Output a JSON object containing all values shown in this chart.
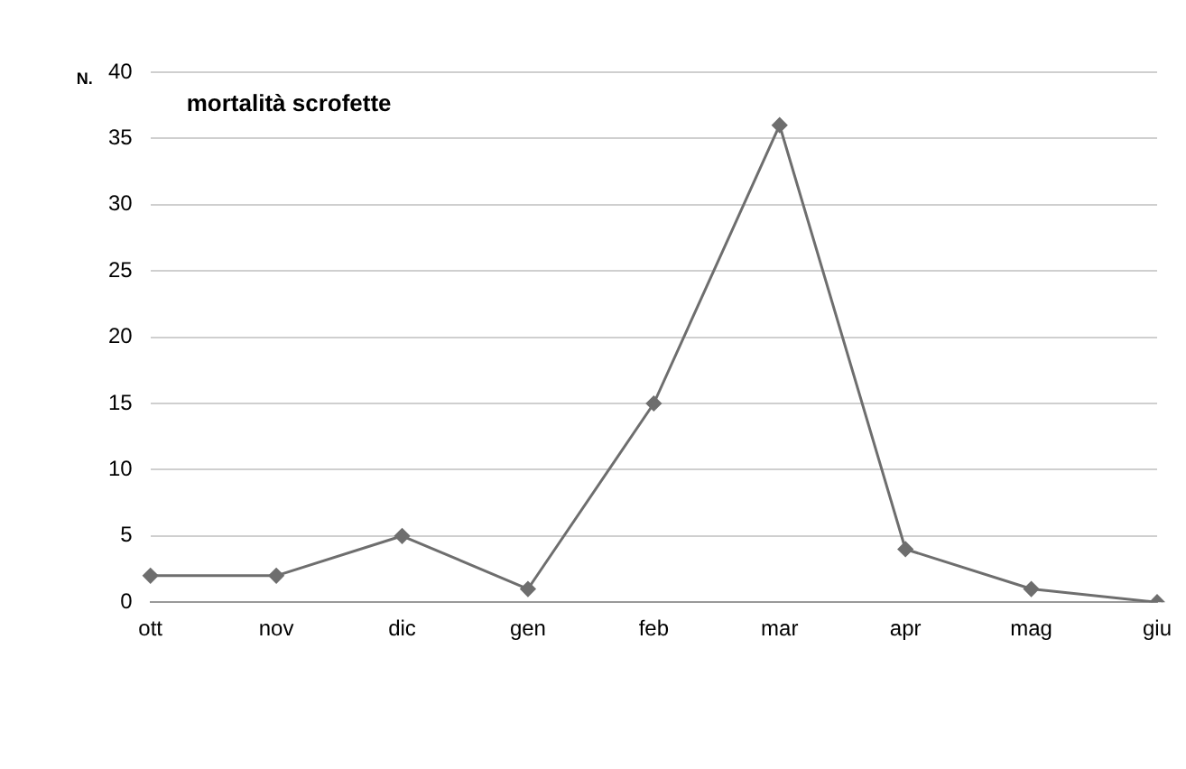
{
  "chart_data": {
    "type": "line",
    "title": "mortalità scrofette",
    "ylabel": "N.",
    "categories": [
      "ott",
      "nov",
      "dic",
      "gen",
      "feb",
      "mar",
      "apr",
      "mag",
      "giu"
    ],
    "series": [
      {
        "color": "#6e6e6e",
        "values": [
          2,
          2,
          5,
          1,
          15,
          36,
          4,
          1,
          0
        ]
      }
    ],
    "ylim": [
      0,
      40
    ],
    "yticks": [
      0,
      5,
      10,
      15,
      20,
      25,
      30,
      35,
      40
    ],
    "grid": "y",
    "legend": false,
    "marker": "diamond",
    "line_style": "solid"
  }
}
